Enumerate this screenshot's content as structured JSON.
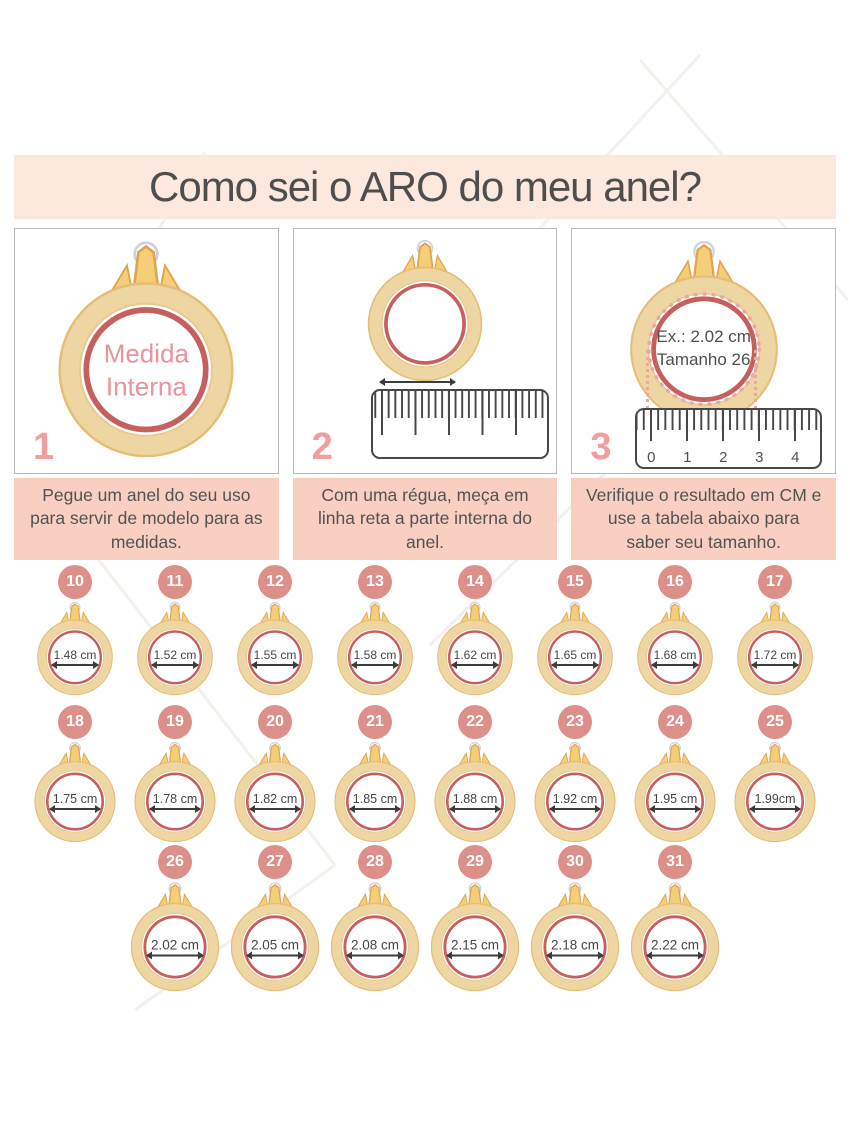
{
  "title": "Como sei o ARO do meu anel?",
  "steps": [
    {
      "number": "1",
      "ring_label": [
        "Medida",
        "Interna"
      ],
      "caption": "Pegue um anel do seu uso para servir de modelo para as medidas."
    },
    {
      "number": "2",
      "caption": "Com uma régua, meça em linha reta a parte interna do anel."
    },
    {
      "number": "3",
      "example": [
        "Ex.: 2.02 cm",
        "Tamanho 26"
      ],
      "ruler_ticks": [
        "0",
        "1",
        "2",
        "3",
        "4"
      ],
      "caption": "Verifique o resultado em CM e use a tabela abaixo para saber seu tamanho."
    }
  ],
  "size_rows": [
    {
      "items": [
        {
          "size": "10",
          "diameter": "1.48 cm"
        },
        {
          "size": "11",
          "diameter": "1.52 cm"
        },
        {
          "size": "12",
          "diameter": "1.55 cm"
        },
        {
          "size": "13",
          "diameter": "1.58 cm"
        },
        {
          "size": "14",
          "diameter": "1.62 cm"
        },
        {
          "size": "15",
          "diameter": "1.65 cm"
        },
        {
          "size": "16",
          "diameter": "1.68 cm"
        },
        {
          "size": "17",
          "diameter": "1.72 cm"
        }
      ]
    },
    {
      "items": [
        {
          "size": "18",
          "diameter": "1.75 cm"
        },
        {
          "size": "19",
          "diameter": "1.78 cm"
        },
        {
          "size": "20",
          "diameter": "1.82 cm"
        },
        {
          "size": "21",
          "diameter": "1.85 cm"
        },
        {
          "size": "22",
          "diameter": "1.88 cm"
        },
        {
          "size": "23",
          "diameter": "1.92 cm"
        },
        {
          "size": "24",
          "diameter": "1.95 cm"
        },
        {
          "size": "25",
          "diameter": "1.99cm"
        }
      ]
    },
    {
      "items": [
        {
          "size": "26",
          "diameter": "2.02 cm"
        },
        {
          "size": "27",
          "diameter": "2.05 cm"
        },
        {
          "size": "28",
          "diameter": "2.08 cm"
        },
        {
          "size": "29",
          "diameter": "2.15 cm"
        },
        {
          "size": "30",
          "diameter": "2.18 cm"
        },
        {
          "size": "31",
          "diameter": "2.22 cm"
        }
      ]
    }
  ],
  "colors": {
    "banner_bg": "#fce8dc",
    "caption_bg": "#f9cfc2",
    "badge_bg": "#dd8f8a",
    "step_number": "#ef9f9e",
    "ring_gold": "#eed6a3",
    "ring_gold_edge": "#e5bd74",
    "ring_inner_red": "#c6605e",
    "rose_text": "#e8949b",
    "body_text": "#4f4f4f",
    "ruler_ink": "#474747",
    "dotted_guide": "#f0a5a2"
  }
}
